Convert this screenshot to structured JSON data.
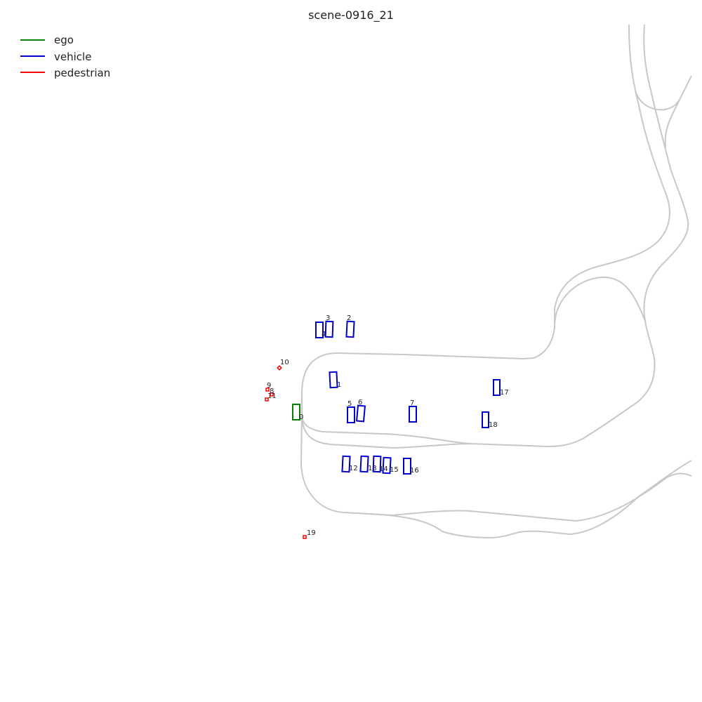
{
  "title": "scene-0916_21",
  "legend": [
    {
      "label": "ego",
      "color": "#008000"
    },
    {
      "label": "vehicle",
      "color": "#0000cc"
    },
    {
      "label": "pedestrian",
      "color": "#ff0000"
    }
  ],
  "colors": {
    "lane": "#c8c8c8",
    "ego": "#008000",
    "vehicle": "#0000cc",
    "pedestrian": "#ff0000"
  },
  "agents": [
    {
      "id": "0",
      "type": "ego"
    },
    {
      "id": "1",
      "type": "vehicle"
    },
    {
      "id": "2",
      "type": "vehicle"
    },
    {
      "id": "3",
      "type": "vehicle"
    },
    {
      "id": "4",
      "type": "vehicle"
    },
    {
      "id": "5",
      "type": "vehicle"
    },
    {
      "id": "6",
      "type": "vehicle"
    },
    {
      "id": "7",
      "type": "vehicle"
    },
    {
      "id": "8",
      "type": "pedestrian"
    },
    {
      "id": "9",
      "type": "pedestrian"
    },
    {
      "id": "10",
      "type": "pedestrian"
    },
    {
      "id": "11",
      "type": "pedestrian"
    },
    {
      "id": "12",
      "type": "vehicle"
    },
    {
      "id": "13",
      "type": "vehicle"
    },
    {
      "id": "14",
      "type": "vehicle"
    },
    {
      "id": "15",
      "type": "vehicle"
    },
    {
      "id": "16",
      "type": "vehicle"
    },
    {
      "id": "17",
      "type": "vehicle"
    },
    {
      "id": "18",
      "type": "vehicle"
    },
    {
      "id": "19",
      "type": "pedestrian"
    }
  ]
}
